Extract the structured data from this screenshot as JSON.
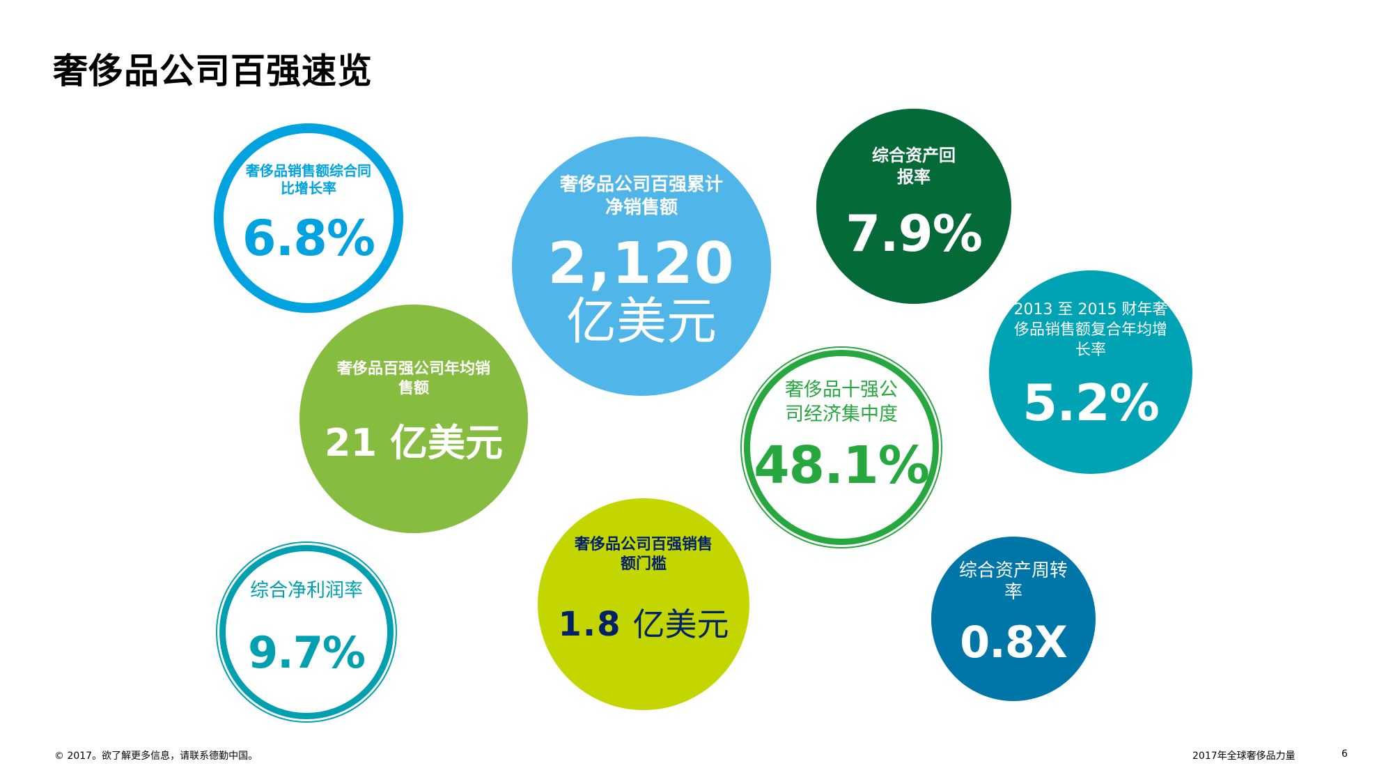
{
  "title": "奢侈品公司百强速览",
  "bubbles": {
    "sales_growth": {
      "label": "奢侈品销售额综合同比增长率",
      "value": "6.8%"
    },
    "total_sales": {
      "label": "奢侈品公司百强累计净销售额",
      "value": "2,120",
      "unit": "亿美元"
    },
    "return_on_assets": {
      "label": "综合资产回报率",
      "value": "7.9%"
    },
    "avg_sales": {
      "label": "奢侈品百强公司年均销售额",
      "value": "21 亿美元"
    },
    "top10_concentration": {
      "label": "奢侈品十强公司经济集中度",
      "value": "48.1%"
    },
    "cagr": {
      "label": "2013 至 2015 财年奢侈品销售额复合年均增长率",
      "value": "5.2%"
    },
    "net_margin": {
      "label": "综合净利润率",
      "value": "9.7%"
    },
    "sales_threshold": {
      "label": "奢侈品公司百强销售额门槛",
      "value": "1.8",
      "unit": "亿美元"
    },
    "asset_turnover": {
      "label": "综合资产周转率",
      "value": "0.8X"
    }
  },
  "footer": {
    "copyright": "© 2017。欲了解更多信息，请联系德勤中国。",
    "report_name": "2017年全球奢侈品力量",
    "page_number": "6"
  },
  "colors": {
    "ring_blue": "#00a3e0",
    "sky_blue": "#50b5e8",
    "dark_green": "#046a38",
    "lime_green": "#86bc3f",
    "ring_green": "#26a83f",
    "teal": "#00a3b4",
    "ring_teal": "#00a0b0",
    "yellow_green": "#c4d600",
    "navy": "#012169",
    "royal_blue": "#0076a8"
  }
}
